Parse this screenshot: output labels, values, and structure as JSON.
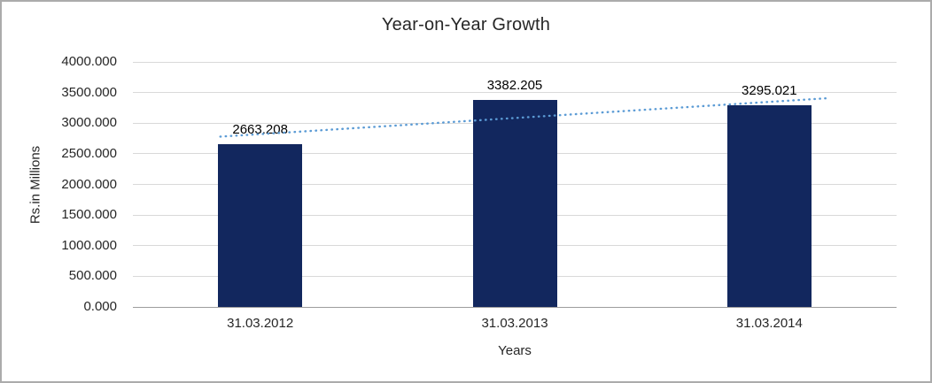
{
  "chart_data": {
    "type": "bar",
    "title": "Year-on-Year Growth",
    "categories": [
      "31.03.2012",
      "31.03.2013",
      "31.03.2014"
    ],
    "values": [
      2663.208,
      3382.205,
      3295.021
    ],
    "data_labels": [
      "2663.208",
      "3382.205",
      "3295.021"
    ],
    "xlabel": "Years",
    "ylabel": "Rs.in Millions",
    "ylim": [
      0,
      4000
    ],
    "ytick_step": 500,
    "ytick_labels": [
      "0.000",
      "500.000",
      "1000.000",
      "1500.000",
      "2000.000",
      "2500.000",
      "3000.000",
      "3500.000",
      "4000.000"
    ],
    "grid": true,
    "legend": "none",
    "bar_color": "#12275e",
    "trendline": {
      "type": "linear",
      "style": "dotted",
      "color": "#5b9bd5",
      "start_value": 2780,
      "end_value": 3410
    }
  }
}
